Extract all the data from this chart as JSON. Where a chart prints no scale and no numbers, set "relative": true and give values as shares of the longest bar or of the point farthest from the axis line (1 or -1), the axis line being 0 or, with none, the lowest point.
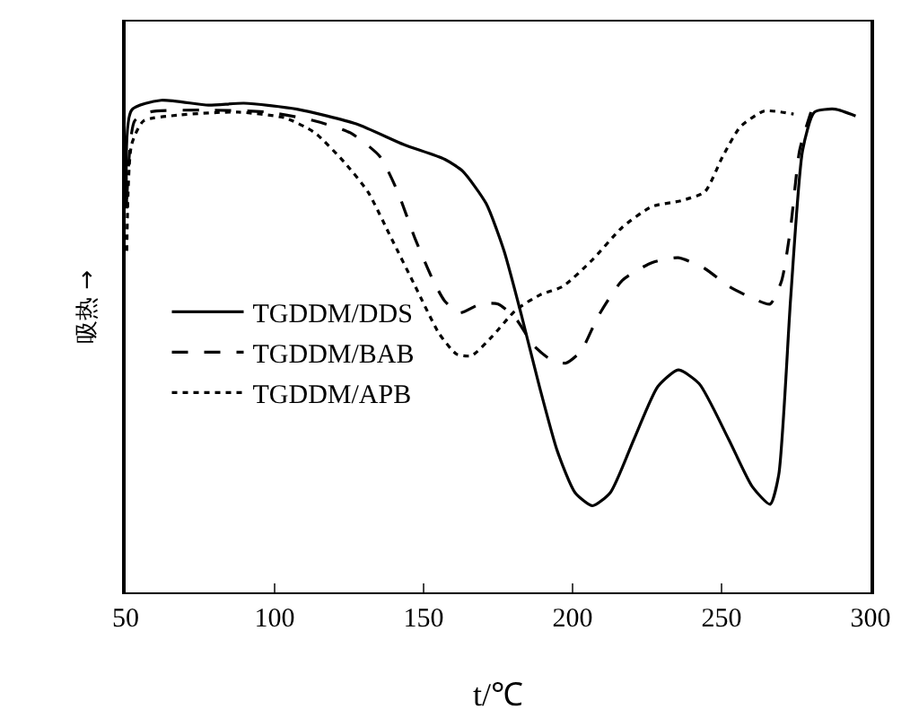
{
  "chart_data": {
    "type": "line",
    "relative": true,
    "xlabel": "t/℃",
    "ylabel": "吸热 →",
    "xlim": [
      50,
      300
    ],
    "xticks": [
      50,
      100,
      150,
      200,
      250,
      300
    ],
    "legend": "left",
    "marker": "none",
    "series": [
      {
        "name": "TGDDM/DDS",
        "color": "#000000",
        "line_style": "solid",
        "x": [
          50.4,
          52,
          61.9,
          77.8,
          89.7,
          107.5,
          127.4,
          143.3,
          157.1,
          163.1,
          171,
          177,
          182.9,
          188.9,
          194.9,
          200.8,
          206.7,
          212.7,
          220.6,
          228.6,
          235.5,
          242.5,
          252.4,
          260.3,
          266.3,
          269.2,
          273.2,
          277.2,
          281.2,
          288.1,
          295
        ],
        "values": [
          0.78,
          0.98,
          1.0,
          0.99,
          0.994,
          0.982,
          0.952,
          0.91,
          0.88,
          0.856,
          0.79,
          0.694,
          0.562,
          0.418,
          0.287,
          0.203,
          0.176,
          0.203,
          0.311,
          0.418,
          0.452,
          0.424,
          0.311,
          0.215,
          0.179,
          0.239,
          0.598,
          0.898,
          0.976,
          0.982,
          0.968
        ]
      },
      {
        "name": "TGDDM/BAB",
        "color": "#000000",
        "line_style": "dashed",
        "x": [
          50.4,
          53,
          57.9,
          77.8,
          97.6,
          113.5,
          125.4,
          135.3,
          141.3,
          147.2,
          153.2,
          157.1,
          162.1,
          169,
          175,
          181,
          186.9,
          192.9,
          197.8,
          202.8,
          208.7,
          216.7,
          226.6,
          235.5,
          244.4,
          252.4,
          260.3,
          266.3,
          270.2,
          273.2,
          276.2,
          280
        ],
        "values": [
          0.8,
          0.958,
          0.976,
          0.98,
          0.976,
          0.958,
          0.934,
          0.886,
          0.814,
          0.718,
          0.634,
          0.592,
          0.568,
          0.586,
          0.586,
          0.556,
          0.502,
          0.472,
          0.466,
          0.49,
          0.562,
          0.634,
          0.67,
          0.68,
          0.658,
          0.622,
          0.598,
          0.586,
          0.634,
          0.742,
          0.898,
          0.976
        ]
      },
      {
        "name": "TGDDM/APB",
        "color": "#000000",
        "line_style": "dotted",
        "x": [
          50.4,
          52,
          56,
          67.9,
          87.7,
          103.6,
          113.5,
          123.4,
          131.3,
          139.3,
          147.2,
          155.2,
          161.1,
          166.1,
          173,
          181,
          188.9,
          196.8,
          206.7,
          216.7,
          226.6,
          236.5,
          244.4,
          250.4,
          256.3,
          264.3,
          274.2
        ],
        "values": [
          0.694,
          0.91,
          0.958,
          0.97,
          0.976,
          0.964,
          0.934,
          0.874,
          0.814,
          0.718,
          0.622,
          0.526,
          0.484,
          0.481,
          0.52,
          0.574,
          0.604,
          0.622,
          0.676,
          0.742,
          0.784,
          0.796,
          0.814,
          0.886,
          0.946,
          0.978,
          0.972
        ]
      }
    ]
  }
}
